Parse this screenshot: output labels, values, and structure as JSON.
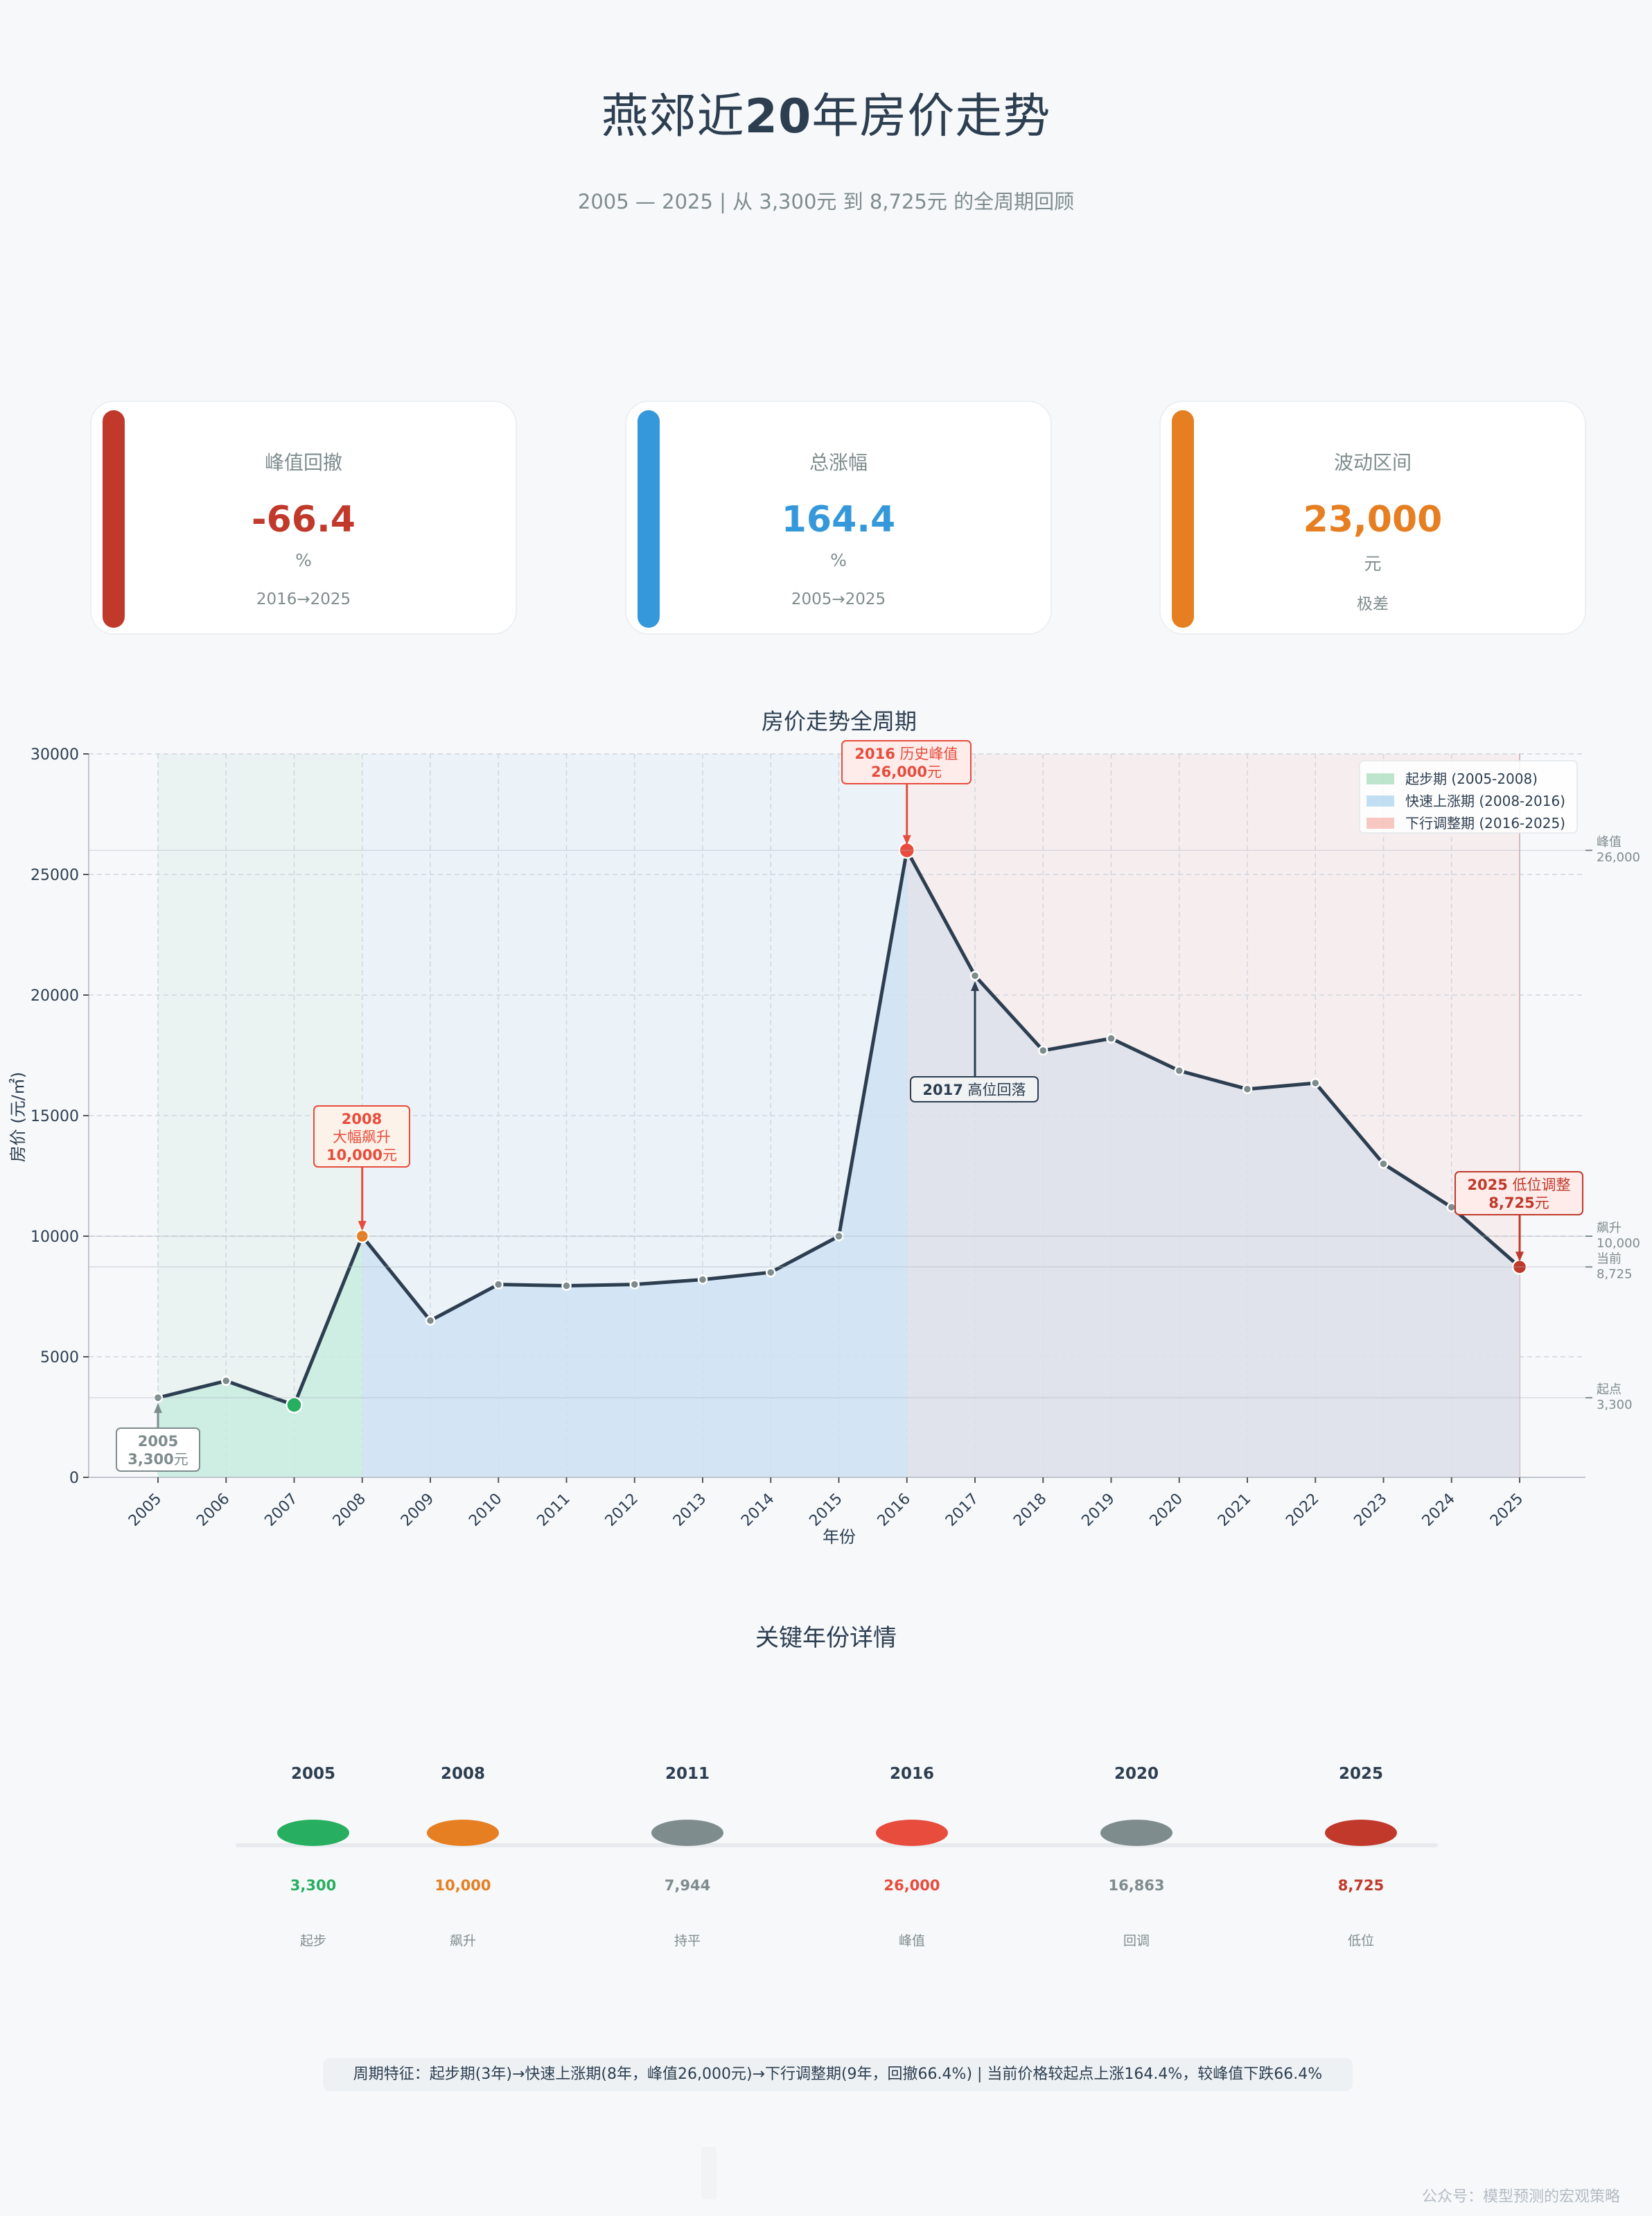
{
  "header": {
    "title_part1": "燕郊近",
    "title_num": "20",
    "title_part2": "年房价走势",
    "subtitle": "2005 — 2025  |  从 3,300元 到 8,725元 的全周期回顾"
  },
  "cards": [
    {
      "label": "峰值回撤",
      "value": "-66.4",
      "unit": "%",
      "note": "2016→2025",
      "color": "#c0392b"
    },
    {
      "label": "总涨幅",
      "value": "164.4",
      "unit": "%",
      "note": "2005→2025",
      "color": "#3498db"
    },
    {
      "label": "波动区间",
      "value": "23,000",
      "unit": "元",
      "note": "极差",
      "color": "#e67e22"
    }
  ],
  "chart_data": {
    "type": "line",
    "title": "房价走势全周期",
    "xlabel": "年份",
    "ylabel": "房价 (元/㎡)",
    "x": [
      2005,
      2006,
      2007,
      2008,
      2009,
      2010,
      2011,
      2012,
      2013,
      2014,
      2015,
      2016,
      2017,
      2018,
      2019,
      2020,
      2021,
      2022,
      2023,
      2024,
      2025
    ],
    "series": [
      {
        "values": [
          3300,
          4000,
          3000,
          10000,
          6500,
          8000,
          7944,
          8000,
          8200,
          8500,
          10000,
          26000,
          20800,
          17700,
          18200,
          16863,
          16100,
          16350,
          13000,
          11200,
          8725
        ]
      }
    ],
    "ylim": [
      0,
      30000
    ],
    "yticks": [
      0,
      5000,
      10000,
      15000,
      20000,
      25000,
      30000
    ],
    "grid": true,
    "legend_position": "top-right",
    "phases": [
      {
        "name": "起步期 (2005-2008)",
        "start": 2005,
        "end": 2008,
        "color": "#27ae60"
      },
      {
        "name": "快速上涨期 (2008-2016)",
        "start": 2008,
        "end": 2016,
        "color": "#3498db"
      },
      {
        "name": "下行调整期 (2016-2025)",
        "start": 2016,
        "end": 2025,
        "color": "#e74c3c"
      }
    ],
    "reference_lines": [
      {
        "value": 26000,
        "label": "峰值\n26,000"
      },
      {
        "value": 10000,
        "label": "飙升\n10,000"
      },
      {
        "value": 8725,
        "label": "当前\n8,725"
      },
      {
        "value": 3300,
        "label": "起点\n3,300"
      }
    ],
    "annotations": [
      {
        "x": 2005,
        "y": 3300,
        "lines": [
          [
            "2005",
            "",
            true
          ],
          [
            "3,300",
            "元",
            true
          ]
        ],
        "color": "#7f8c8d",
        "bg": "#ffffff"
      },
      {
        "x": 2008,
        "y": 10000,
        "lines": [
          [
            "2008",
            "",
            true
          ],
          [
            "大幅飙升",
            "",
            false
          ],
          [
            "10,000",
            "元",
            true
          ]
        ],
        "color": "#e74c3c",
        "bg": "#fdf2e9"
      },
      {
        "x": 2016,
        "y": 26000,
        "lines": [
          [
            "2016",
            " 历史峰值",
            true
          ],
          [
            "26,000",
            "元",
            true
          ]
        ],
        "color": "#e74c3c",
        "bg": "#fdecea"
      },
      {
        "x": 2017,
        "y": 20800,
        "lines": [
          [
            "2017",
            " 高位回落",
            true
          ]
        ],
        "color": "#2c3e50",
        "bg": "#f0f2f4"
      },
      {
        "x": 2025,
        "y": 8725,
        "lines": [
          [
            "2025",
            " 低位调整",
            true
          ],
          [
            "8,725",
            "元",
            true
          ]
        ],
        "color": "#c0392b",
        "bg": "#fdecea"
      }
    ]
  },
  "key_years": {
    "title": "关键年份详情",
    "items": [
      {
        "year": "2005",
        "value": "3,300",
        "tag": "起步",
        "color": "#27ae60"
      },
      {
        "year": "2008",
        "value": "10,000",
        "tag": "飙升",
        "color": "#e67e22"
      },
      {
        "year": "2011",
        "value": "7,944",
        "tag": "持平",
        "color": "#7f8c8d"
      },
      {
        "year": "2016",
        "value": "26,000",
        "tag": "峰值",
        "color": "#e74c3c"
      },
      {
        "year": "2020",
        "value": "16,863",
        "tag": "回调",
        "color": "#7f8c8d"
      },
      {
        "year": "2025",
        "value": "8,725",
        "tag": "低位",
        "color": "#c0392b"
      }
    ]
  },
  "footer": {
    "summary": "周期特征：起步期(3年)→快速上涨期(8年，峰值26,000元)→下行调整期(9年，回撤66.4%)  |  当前价格较起点上涨164.4%，较峰值下跌66.4%",
    "watermark": "公众号：模型预测的宏观策略"
  }
}
